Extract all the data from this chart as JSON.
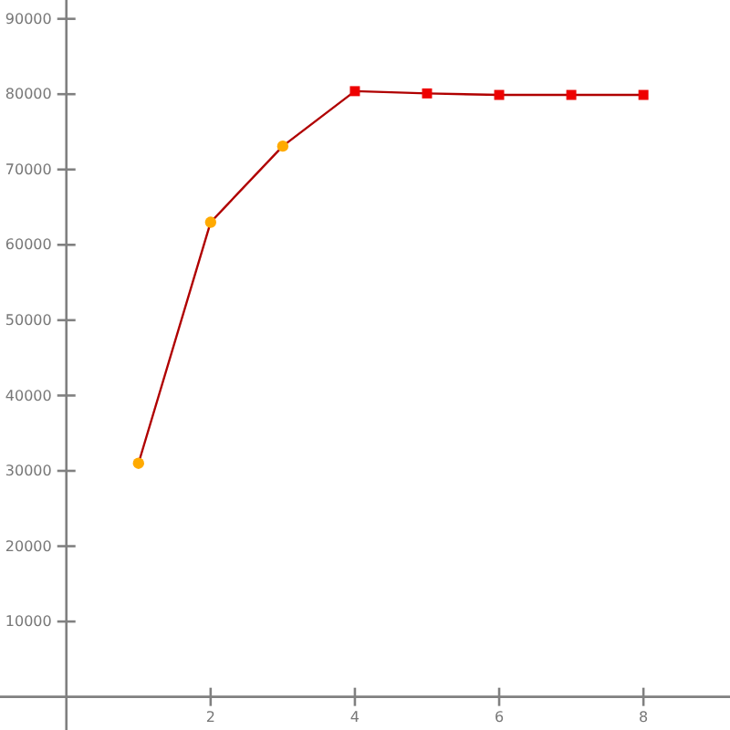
{
  "chart_data": {
    "type": "line",
    "x": [
      1,
      2,
      3,
      4,
      5,
      6,
      7,
      8
    ],
    "xlim": [
      -0.92,
      9.2
    ],
    "ylim": [
      -4400,
      92500
    ],
    "xticks": [
      2,
      4,
      6,
      8
    ],
    "yticks": [
      10000,
      20000,
      30000,
      40000,
      50000,
      60000,
      70000,
      80000,
      90000
    ],
    "grid": false,
    "series": [
      {
        "color": "#b00000",
        "marker": "none",
        "values": [
          31000,
          63000,
          73100,
          80400,
          80100,
          79900,
          79900,
          79900
        ]
      },
      {
        "type": "scatter",
        "color": "#ffaa00",
        "marker": "circle",
        "x": [
          1,
          2,
          3
        ],
        "values": [
          31000,
          63000,
          73100
        ]
      },
      {
        "type": "scatter",
        "color": "#ee0000",
        "marker": "square",
        "x": [
          4,
          5,
          6,
          7,
          8
        ],
        "values": [
          80400,
          80100,
          79900,
          79900,
          79900
        ]
      }
    ]
  }
}
